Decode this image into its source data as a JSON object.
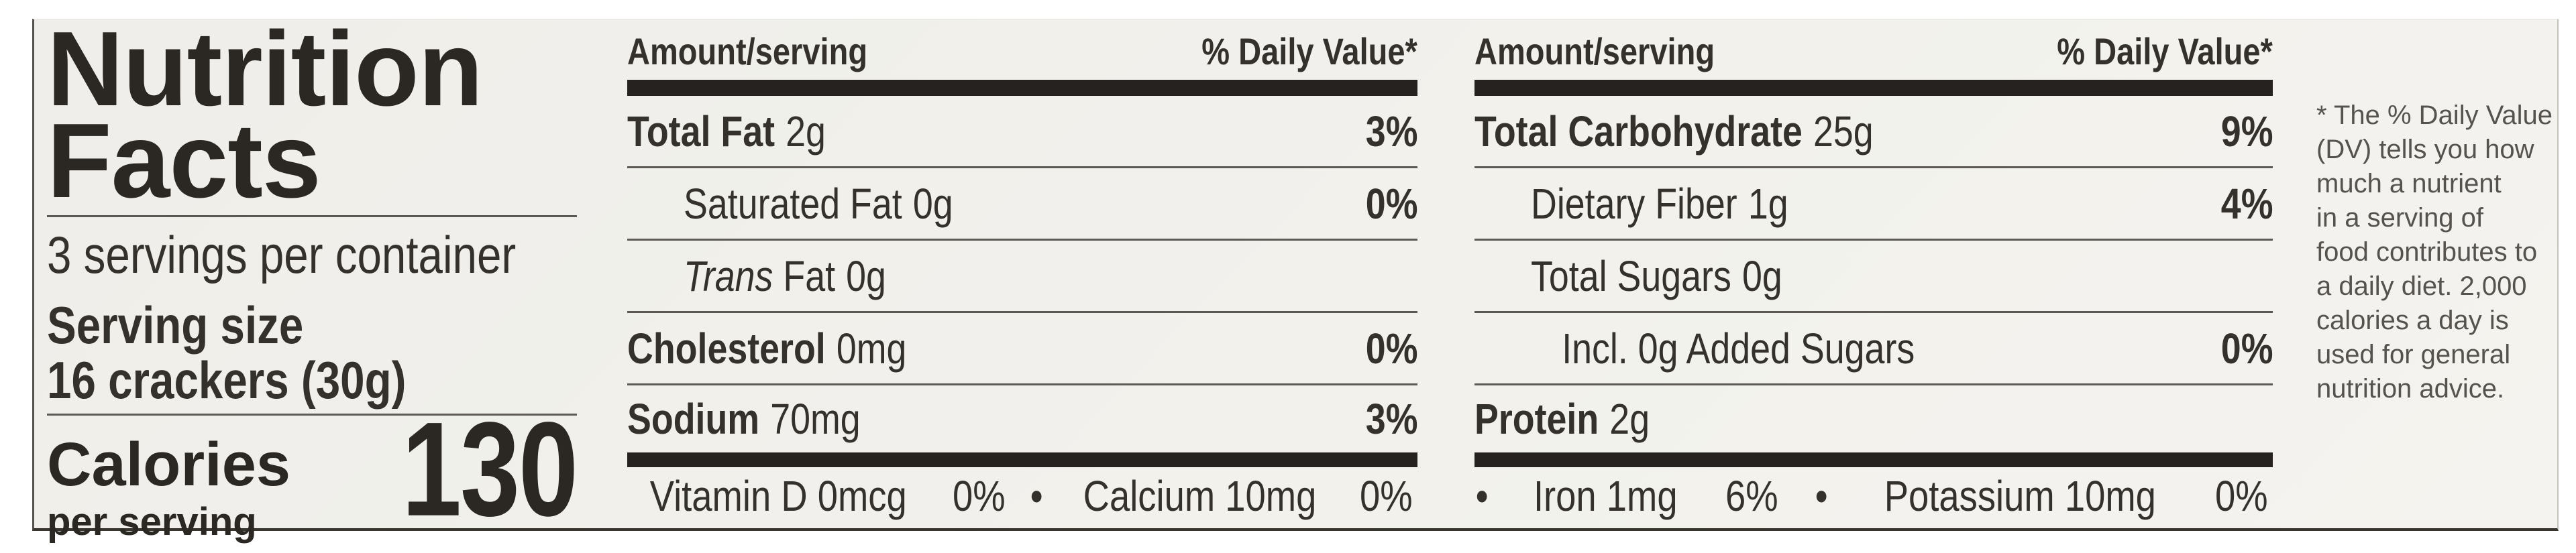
{
  "label": {
    "title": "Nutrition\nFacts",
    "servings_per_container": "3 servings per container",
    "serving_size_label": "Serving size",
    "serving_size_value": "16 crackers (30g)",
    "calories_label": "Calories",
    "calories_sublabel": "per serving",
    "calories_value": "130"
  },
  "columns": [
    {
      "header_amount": "Amount/serving",
      "header_dv": "% Daily Value*",
      "rows": [
        {
          "name": "Total Fat",
          "amount": "2g",
          "dv": "3%"
        },
        {
          "name": "Saturated Fat",
          "amount": "0g",
          "dv": "0%"
        },
        {
          "name_italic": "Trans",
          "name": " Fat",
          "amount": "0g",
          "dv": ""
        },
        {
          "name": "Cholesterol",
          "amount": "0mg",
          "dv": "0%"
        },
        {
          "name": "Sodium",
          "amount": "70mg",
          "dv": "3%"
        }
      ],
      "footer": [
        "Vitamin D 0mcg",
        "0%",
        "•",
        "Calcium 10mg",
        "0%"
      ]
    },
    {
      "header_amount": "Amount/serving",
      "header_dv": "% Daily Value*",
      "rows": [
        {
          "name": "Total Carbohydrate",
          "amount": "25g",
          "dv": "9%"
        },
        {
          "name": "Dietary Fiber",
          "amount": "1g",
          "dv": "4%"
        },
        {
          "name": "Total Sugars",
          "amount": "0g",
          "dv": ""
        },
        {
          "name": "Incl. 0g Added Sugars",
          "amount": "",
          "dv": "0%"
        },
        {
          "name": "Protein",
          "amount": "2g",
          "dv": ""
        }
      ],
      "footer": [
        "•",
        "Iron 1mg",
        "6%",
        "•",
        "Potassium 10mg",
        "0%"
      ]
    }
  ],
  "footnote": "* The % Daily Value\n(DV) tells you how\nmuch a nutrient\nin a serving of\nfood contributes to\na daily diet. 2,000\ncalories a day is\nused for general\nnutrition advice."
}
